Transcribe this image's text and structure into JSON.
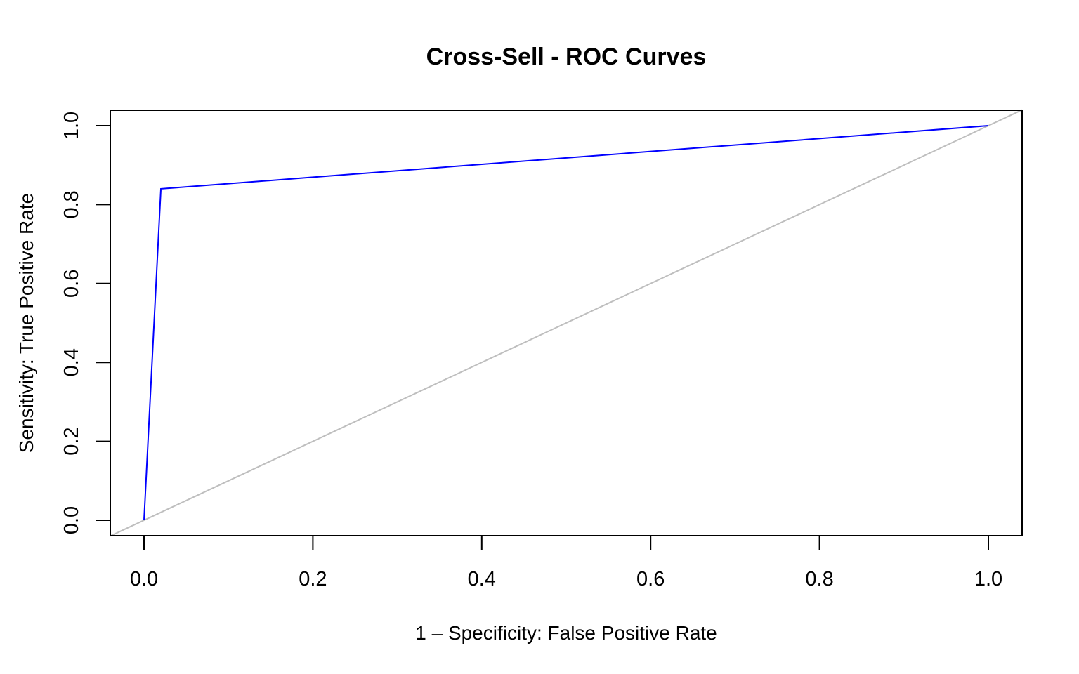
{
  "chart_data": {
    "type": "line",
    "title": "Cross-Sell - ROC Curves",
    "xlabel": "1 – Specificity: False Positive Rate",
    "ylabel": "Sensitivity: True Positive Rate",
    "xlim": [
      0.0,
      1.0
    ],
    "ylim": [
      0.0,
      1.0
    ],
    "x_ticks": [
      "0.0",
      "0.2",
      "0.4",
      "0.6",
      "0.8",
      "1.0"
    ],
    "y_ticks": [
      "0.0",
      "0.2",
      "0.4",
      "0.6",
      "0.8",
      "1.0"
    ],
    "grid": false,
    "series": [
      {
        "x": [
          0.0,
          0.02,
          1.0
        ],
        "y": [
          0.0,
          0.84,
          1.0
        ],
        "color": "#0000ff"
      }
    ],
    "reference_line": {
      "x": [
        0.0,
        1.0
      ],
      "y": [
        0.0,
        1.0
      ],
      "color": "#bebebe"
    }
  }
}
